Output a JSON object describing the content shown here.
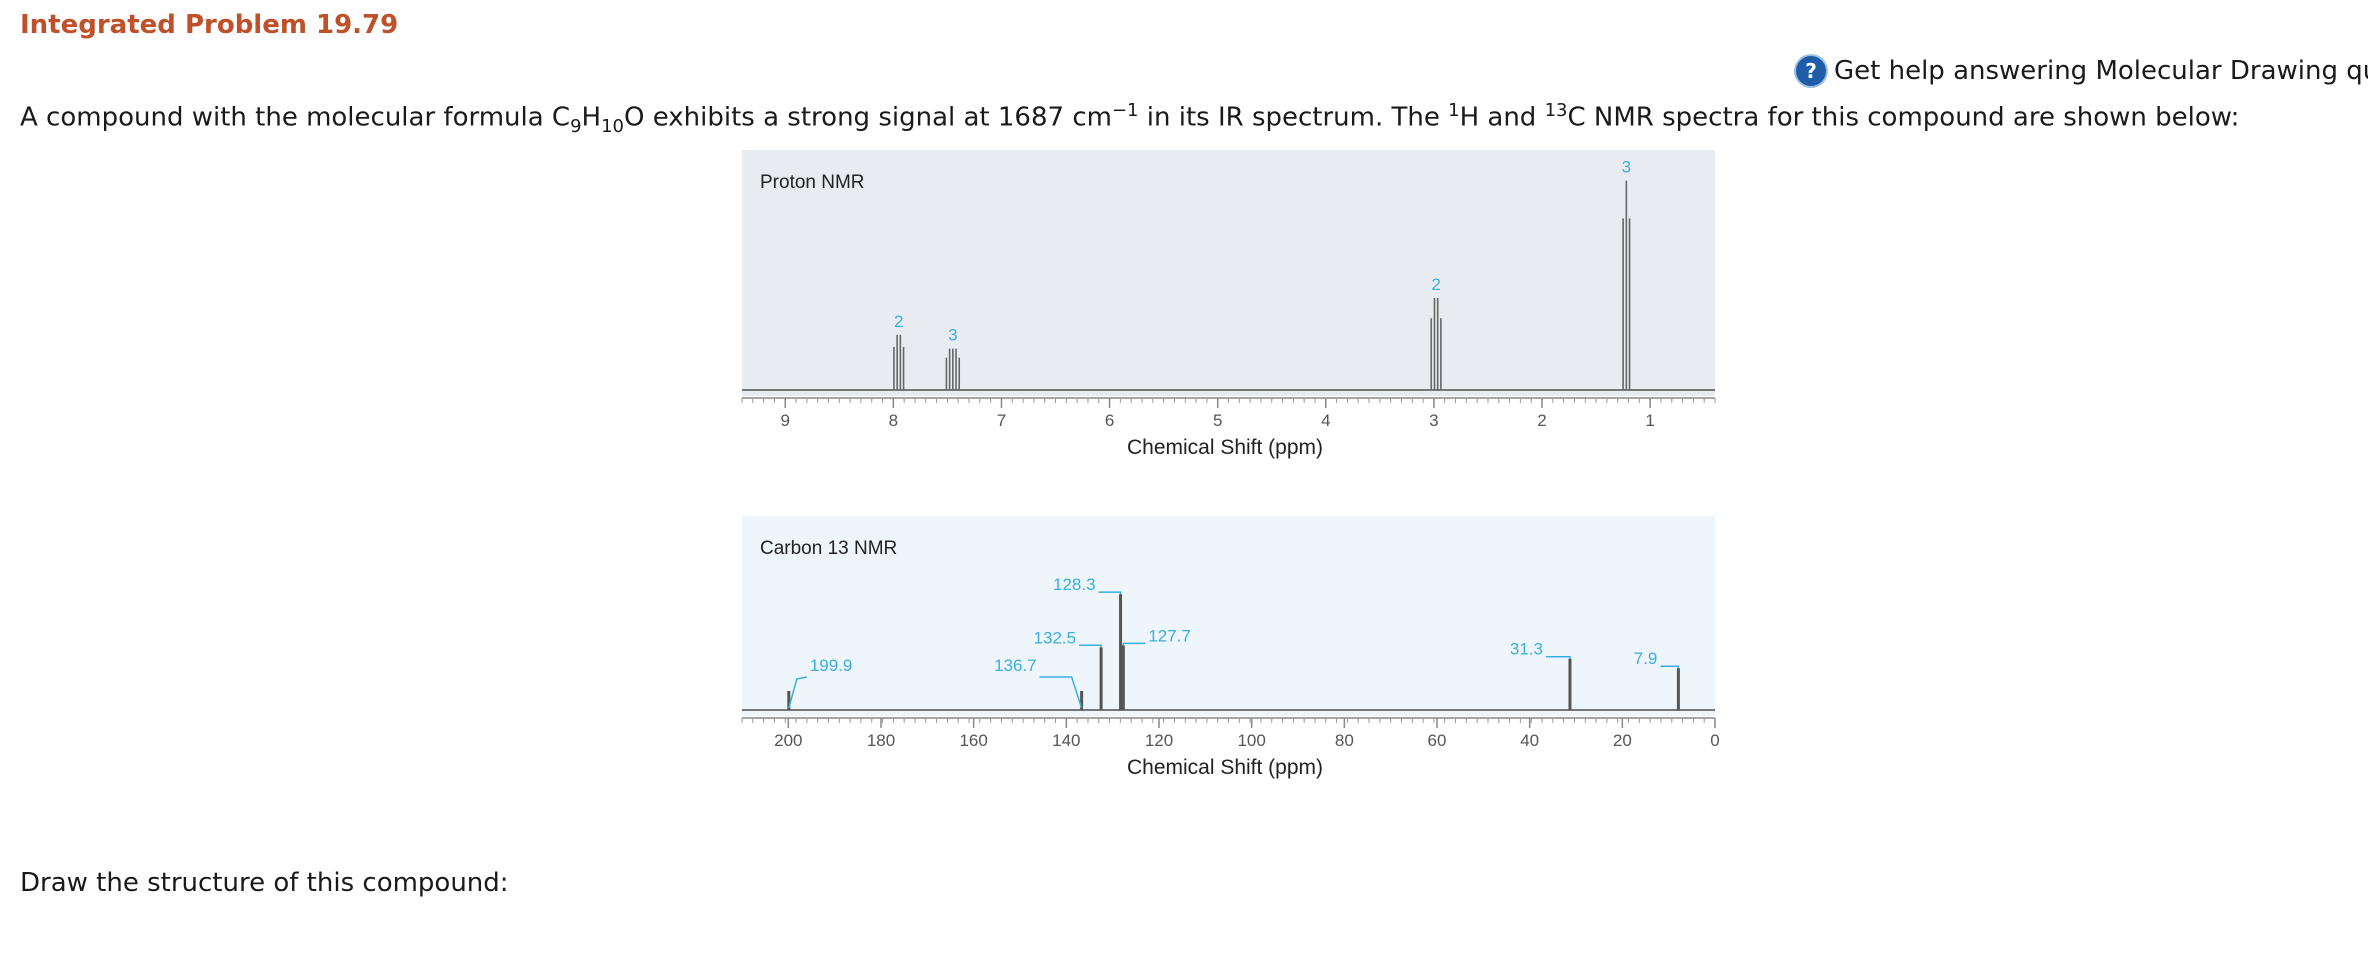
{
  "title": "Integrated Problem 19.79",
  "help_link": "Get help answering Molecular Drawing ques",
  "question": {
    "part1": "A compound with the molecular formula C",
    "sub1": "9",
    "part2": "H",
    "sub2": "10",
    "part3": "O exhibits a strong signal at 1687 cm",
    "sup1": "−1",
    "part4": " in its IR spectrum. The ",
    "sup2": "1",
    "part5": "H and ",
    "sup3": "13",
    "part6": "C NMR spectra for this compound are shown below:"
  },
  "prompt": "Draw the structure of this compound:",
  "chart_data": [
    {
      "type": "line",
      "title": "Proton NMR",
      "xlabel": "Chemical Shift (ppm)",
      "xlim": [
        9.4,
        0.4
      ],
      "xticks": [
        "9",
        "8",
        "7",
        "6",
        "5",
        "4",
        "3",
        "2",
        "1"
      ],
      "tick_values": [
        9,
        8,
        7,
        6,
        5,
        4,
        3,
        2,
        1
      ],
      "peaks": [
        {
          "shift": 7.95,
          "height": 0.24,
          "integration": "2",
          "lines": 4
        },
        {
          "shift": 7.45,
          "height": 0.18,
          "integration": "3",
          "lines": 5
        },
        {
          "shift": 2.98,
          "height": 0.4,
          "integration": "2",
          "lines": 4
        },
        {
          "shift": 1.22,
          "height": 0.91,
          "integration": "3",
          "lines": 3
        }
      ],
      "background": "#e8ecf0",
      "label_color": "#3aaee0"
    },
    {
      "type": "line",
      "title": "Carbon 13 NMR",
      "xlabel": "Chemical Shift (ppm)",
      "xlim": [
        210,
        0
      ],
      "xticks": [
        "200",
        "180",
        "160",
        "140",
        "120",
        "100",
        "80",
        "60",
        "40",
        "20",
        "0"
      ],
      "tick_values": [
        200,
        180,
        160,
        140,
        120,
        100,
        80,
        60,
        40,
        20,
        0
      ],
      "peaks": [
        {
          "shift": 199.9,
          "height": 0.1,
          "label": "199.9"
        },
        {
          "shift": 136.7,
          "height": 0.1,
          "label": "136.7"
        },
        {
          "shift": 132.5,
          "height": 0.33,
          "label": "132.5"
        },
        {
          "shift": 128.3,
          "height": 0.61,
          "label": "128.3"
        },
        {
          "shift": 127.7,
          "height": 0.34,
          "label": "127.7"
        },
        {
          "shift": 31.3,
          "height": 0.27,
          "label": "31.3"
        },
        {
          "shift": 7.9,
          "height": 0.22,
          "label": "7.9"
        }
      ],
      "background": "#eef6fb",
      "label_color": "#3aaee0"
    }
  ]
}
